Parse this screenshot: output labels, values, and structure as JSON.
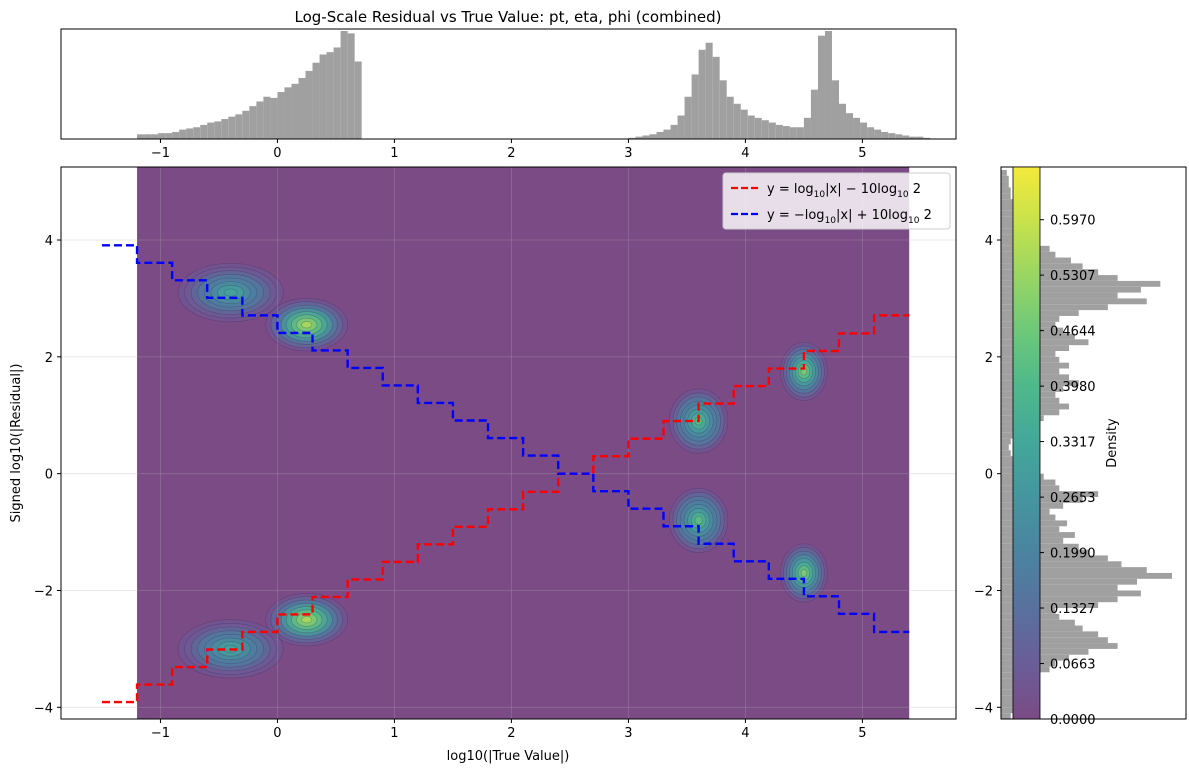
{
  "chart_data": [
    {
      "panel": "main",
      "type": "heatmap",
      "title": "Log-Scale Residual vs True Value: pt, eta, phi (combined)",
      "xlabel": "log10(|True Value|)",
      "ylabel": "Signed log10(|Residual|)",
      "xlim": [
        -1.85,
        5.8
      ],
      "ylim": [
        -4.2,
        5.25
      ],
      "grid": true,
      "legend_position": "top-right",
      "background_color": "#7b4b86",
      "data_x_range": [
        -1.2,
        5.4
      ],
      "x_ticks": [
        {
          "v": -1,
          "label": "−1"
        },
        {
          "v": 0,
          "label": "0"
        },
        {
          "v": 1,
          "label": "1"
        },
        {
          "v": 2,
          "label": "2"
        },
        {
          "v": 3,
          "label": "3"
        },
        {
          "v": 4,
          "label": "4"
        },
        {
          "v": 5,
          "label": "5"
        }
      ],
      "y_ticks": [
        {
          "v": -4,
          "label": "−4"
        },
        {
          "v": -2,
          "label": "−2"
        },
        {
          "v": 0,
          "label": "0"
        },
        {
          "v": 2,
          "label": "2"
        },
        {
          "v": 4,
          "label": "4"
        }
      ],
      "series": [
        {
          "name": "y = log10|x| − 10log10 2",
          "legend_main": "y = log",
          "legend_sub": "10",
          "legend_mid": "|x| − 10log",
          "legend_sub2": "10",
          "legend_end": " 2",
          "color": "#ff0000",
          "style": "dashed-step",
          "x": [
            -1.5,
            -1.2,
            -0.9,
            -0.6,
            -0.3,
            0.0,
            0.3,
            0.6,
            0.9,
            1.2,
            1.5,
            1.8,
            2.1,
            2.4,
            2.7,
            3.0,
            3.3,
            3.6,
            3.9,
            4.2,
            4.5,
            4.8,
            5.1,
            5.4
          ],
          "y": [
            -3.91,
            -3.61,
            -3.31,
            -3.01,
            -2.71,
            -2.41,
            -2.11,
            -1.81,
            -1.51,
            -1.21,
            -0.91,
            -0.61,
            -0.31,
            0.0,
            0.3,
            0.6,
            0.9,
            1.2,
            1.5,
            1.8,
            2.1,
            2.4,
            2.71,
            2.71
          ]
        },
        {
          "name": "y = −log10|x| + 10log10 2",
          "legend_main": "y = −log",
          "legend_sub": "10",
          "legend_mid": "|x| + 10log",
          "legend_sub2": "10",
          "legend_end": " 2",
          "color": "#0000ff",
          "style": "dashed-step",
          "x": [
            -1.5,
            -1.2,
            -0.9,
            -0.6,
            -0.3,
            0.0,
            0.3,
            0.6,
            0.9,
            1.2,
            1.5,
            1.8,
            2.1,
            2.4,
            2.7,
            3.0,
            3.3,
            3.6,
            3.9,
            4.2,
            4.5,
            4.8,
            5.1,
            5.4
          ],
          "y": [
            3.91,
            3.61,
            3.31,
            3.01,
            2.71,
            2.41,
            2.11,
            1.81,
            1.51,
            1.21,
            0.91,
            0.61,
            0.31,
            0.0,
            -0.3,
            -0.6,
            -0.9,
            -1.2,
            -1.5,
            -1.8,
            -2.1,
            -2.4,
            -2.71,
            -2.71
          ]
        }
      ],
      "density_clusters": [
        {
          "x": 0.25,
          "y": 2.55,
          "sx": 0.35,
          "sy": 0.45,
          "peak": 0.6
        },
        {
          "x": -0.4,
          "y": 3.1,
          "sx": 0.45,
          "sy": 0.5,
          "peak": 0.35
        },
        {
          "x": 0.25,
          "y": -2.5,
          "sx": 0.35,
          "sy": 0.45,
          "peak": 0.6
        },
        {
          "x": -0.4,
          "y": -3.0,
          "sx": 0.45,
          "sy": 0.5,
          "peak": 0.35
        },
        {
          "x": 3.6,
          "y": 0.9,
          "sx": 0.25,
          "sy": 0.55,
          "peak": 0.45
        },
        {
          "x": 3.6,
          "y": -0.8,
          "sx": 0.25,
          "sy": 0.55,
          "peak": 0.45
        },
        {
          "x": 4.5,
          "y": 1.75,
          "sx": 0.2,
          "sy": 0.5,
          "peak": 0.55
        },
        {
          "x": 4.5,
          "y": -1.7,
          "sx": 0.2,
          "sy": 0.5,
          "peak": 0.55
        }
      ]
    },
    {
      "panel": "top-marginal",
      "type": "bar",
      "color": "#a0a0a0",
      "x_ticks": [
        {
          "v": -1,
          "label": "−1"
        },
        {
          "v": 0,
          "label": "0"
        },
        {
          "v": 1,
          "label": "1"
        },
        {
          "v": 2,
          "label": "2"
        },
        {
          "v": 3,
          "label": "3"
        },
        {
          "v": 4,
          "label": "4"
        },
        {
          "v": 5,
          "label": "5"
        }
      ],
      "bin_width": 0.06,
      "bin_start": -1.2,
      "values": [
        0.04,
        0.04,
        0.04,
        0.05,
        0.05,
        0.06,
        0.08,
        0.09,
        0.1,
        0.12,
        0.14,
        0.15,
        0.17,
        0.19,
        0.21,
        0.24,
        0.28,
        0.32,
        0.36,
        0.35,
        0.4,
        0.44,
        0.47,
        0.52,
        0.58,
        0.65,
        0.72,
        0.74,
        0.78,
        0.92,
        0.9,
        0.66,
        0.0,
        0,
        0,
        0,
        0,
        0,
        0,
        0,
        0,
        0,
        0,
        0,
        0,
        0,
        0,
        0,
        0,
        0,
        0,
        0,
        0,
        0,
        0,
        0,
        0,
        0,
        0,
        0,
        0,
        0,
        0,
        0,
        0,
        0,
        0,
        0,
        0,
        0,
        0.01,
        0.02,
        0.03,
        0.04,
        0.06,
        0.08,
        0.12,
        0.2,
        0.36,
        0.55,
        0.76,
        0.82,
        0.7,
        0.5,
        0.36,
        0.3,
        0.25,
        0.2,
        0.18,
        0.16,
        0.14,
        0.12,
        0.11,
        0.1,
        0.1,
        0.18,
        0.42,
        0.88,
        0.92,
        0.5,
        0.3,
        0.22,
        0.18,
        0.14,
        0.1,
        0.08,
        0.06,
        0.05,
        0.04,
        0.03,
        0.02,
        0.02,
        0.01
      ]
    },
    {
      "panel": "right-marginal",
      "type": "bar",
      "orientation": "horizontal",
      "color": "#a0a0a0",
      "y_ticks": [
        {
          "v": -4,
          "label": "−4"
        },
        {
          "v": -2,
          "label": "−2"
        },
        {
          "v": 0,
          "label": "0"
        },
        {
          "v": 2,
          "label": "2"
        },
        {
          "v": 4,
          "label": "4"
        }
      ],
      "bin_height": 0.1,
      "bin_start": -4.2,
      "values": [
        0.05,
        0.07,
        0.08,
        0.1,
        0.12,
        0.14,
        0.16,
        0.2,
        0.25,
        0.28,
        0.35,
        0.45,
        0.6,
        0.55,
        0.5,
        0.42,
        0.38,
        0.3,
        0.28,
        0.5,
        0.6,
        0.72,
        0.6,
        0.7,
        0.88,
        0.75,
        0.62,
        0.55,
        0.45,
        0.4,
        0.32,
        0.38,
        0.3,
        0.34,
        0.28,
        0.25,
        0.32,
        0.42,
        0.5,
        0.3,
        0.28,
        0.22,
        0.18,
        0.2,
        0.06,
        0.05,
        0.04,
        0.05,
        0.06,
        0.1,
        0.18,
        0.22,
        0.3,
        0.35,
        0.3,
        0.28,
        0.32,
        0.4,
        0.35,
        0.3,
        0.35,
        0.3,
        0.28,
        0.35,
        0.45,
        0.38,
        0.32,
        0.28,
        0.3,
        0.4,
        0.55,
        0.75,
        0.6,
        0.72,
        0.82,
        0.6,
        0.5,
        0.42,
        0.36,
        0.28,
        0.25,
        0.2,
        0.18,
        0.16,
        0.12,
        0.1,
        0.08,
        0.07,
        0.06,
        0.05,
        0.05,
        0.04,
        0.04,
        0.03
      ]
    },
    {
      "panel": "colorbar",
      "label": "Density",
      "min": 0.0,
      "max": 0.66,
      "ticks": [
        {
          "v": 0.0,
          "label": "0.0000"
        },
        {
          "v": 0.0663,
          "label": "0.0663"
        },
        {
          "v": 0.1327,
          "label": "0.1327"
        },
        {
          "v": 0.199,
          "label": "0.1990"
        },
        {
          "v": 0.2653,
          "label": "0.2653"
        },
        {
          "v": 0.3317,
          "label": "0.3317"
        },
        {
          "v": 0.398,
          "label": "0.3980"
        },
        {
          "v": 0.4644,
          "label": "0.4644"
        },
        {
          "v": 0.5307,
          "label": "0.5307"
        },
        {
          "v": 0.597,
          "label": "0.5970"
        }
      ],
      "colors": [
        "#7b4b86",
        "#6a5d98",
        "#58719e",
        "#4b83a0",
        "#45959f",
        "#43a79a",
        "#4eb88c",
        "#6cc87a",
        "#97d564",
        "#c7e24c",
        "#f5e93b"
      ]
    }
  ]
}
